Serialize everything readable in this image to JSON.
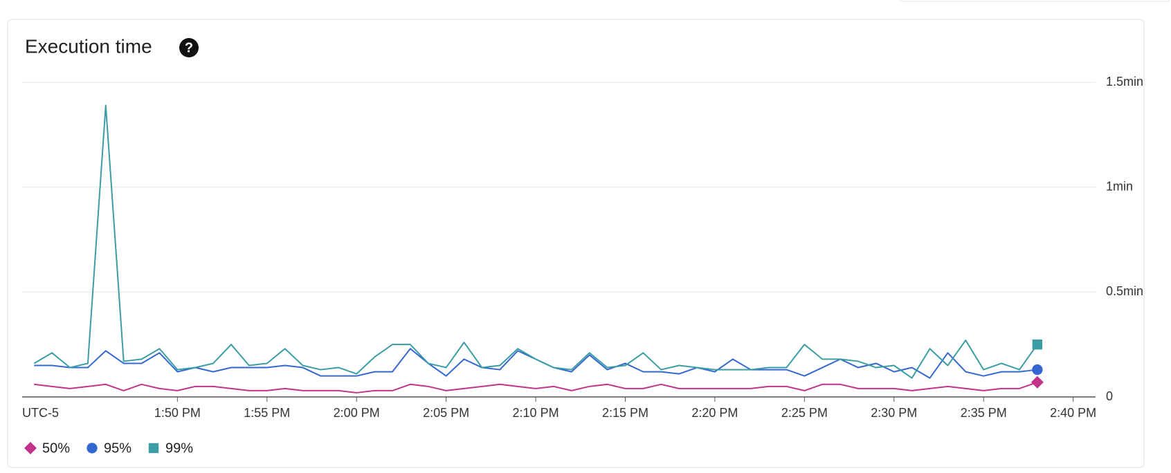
{
  "chart_data": {
    "type": "line",
    "title": "Execution time",
    "help_icon": "?",
    "x_label": "UTC-5",
    "x": [
      "13:42",
      "13:43",
      "13:44",
      "13:45",
      "13:46",
      "13:47",
      "13:48",
      "13:49",
      "13:50",
      "13:51",
      "13:52",
      "13:53",
      "13:54",
      "13:55",
      "13:56",
      "13:57",
      "13:58",
      "13:59",
      "14:00",
      "14:01",
      "14:02",
      "14:03",
      "14:04",
      "14:05",
      "14:06",
      "14:07",
      "14:08",
      "14:09",
      "14:10",
      "14:11",
      "14:12",
      "14:13",
      "14:14",
      "14:15",
      "14:16",
      "14:17",
      "14:18",
      "14:19",
      "14:20",
      "14:21",
      "14:22",
      "14:23",
      "14:24",
      "14:25",
      "14:26",
      "14:27",
      "14:28",
      "14:29",
      "14:30",
      "14:31",
      "14:32",
      "14:33",
      "14:34",
      "14:35",
      "14:36",
      "14:37",
      "14:38"
    ],
    "series": [
      {
        "name": "50%",
        "color": "#c2338a",
        "marker": "diamond",
        "values": [
          0.06,
          0.05,
          0.04,
          0.05,
          0.06,
          0.03,
          0.06,
          0.04,
          0.03,
          0.05,
          0.05,
          0.04,
          0.03,
          0.03,
          0.04,
          0.03,
          0.03,
          0.03,
          0.02,
          0.03,
          0.03,
          0.06,
          0.05,
          0.03,
          0.04,
          0.05,
          0.06,
          0.05,
          0.04,
          0.05,
          0.03,
          0.05,
          0.06,
          0.04,
          0.04,
          0.06,
          0.04,
          0.04,
          0.04,
          0.04,
          0.04,
          0.05,
          0.05,
          0.03,
          0.06,
          0.06,
          0.04,
          0.04,
          0.04,
          0.03,
          0.04,
          0.05,
          0.04,
          0.03,
          0.04,
          0.04,
          0.07
        ]
      },
      {
        "name": "95%",
        "color": "#3467d0",
        "marker": "circle",
        "values": [
          0.15,
          0.15,
          0.14,
          0.14,
          0.22,
          0.16,
          0.16,
          0.21,
          0.12,
          0.14,
          0.12,
          0.14,
          0.14,
          0.14,
          0.15,
          0.14,
          0.1,
          0.1,
          0.1,
          0.12,
          0.12,
          0.23,
          0.16,
          0.1,
          0.18,
          0.14,
          0.13,
          0.22,
          0.18,
          0.14,
          0.12,
          0.2,
          0.13,
          0.16,
          0.12,
          0.12,
          0.11,
          0.14,
          0.12,
          0.18,
          0.13,
          0.13,
          0.13,
          0.1,
          0.14,
          0.18,
          0.14,
          0.16,
          0.12,
          0.14,
          0.09,
          0.21,
          0.12,
          0.1,
          0.12,
          0.12,
          0.13
        ]
      },
      {
        "name": "99%",
        "color": "#3a9da5",
        "marker": "square",
        "values": [
          0.16,
          0.21,
          0.14,
          0.16,
          1.39,
          0.17,
          0.18,
          0.23,
          0.13,
          0.14,
          0.16,
          0.25,
          0.15,
          0.16,
          0.23,
          0.15,
          0.13,
          0.14,
          0.11,
          0.19,
          0.25,
          0.25,
          0.16,
          0.14,
          0.26,
          0.14,
          0.15,
          0.23,
          0.18,
          0.14,
          0.13,
          0.21,
          0.14,
          0.15,
          0.21,
          0.13,
          0.15,
          0.14,
          0.13,
          0.13,
          0.13,
          0.14,
          0.14,
          0.25,
          0.18,
          0.18,
          0.17,
          0.14,
          0.15,
          0.09,
          0.23,
          0.15,
          0.27,
          0.13,
          0.16,
          0.13,
          0.25
        ]
      }
    ],
    "xlim": [
      "13:41:20",
      "14:41:15"
    ],
    "xticks": [
      {
        "value": "13:50",
        "label": "1:50 PM"
      },
      {
        "value": "13:55",
        "label": "1:55 PM"
      },
      {
        "value": "14:00",
        "label": "2:00 PM"
      },
      {
        "value": "14:05",
        "label": "2:05 PM"
      },
      {
        "value": "14:10",
        "label": "2:10 PM"
      },
      {
        "value": "14:15",
        "label": "2:15 PM"
      },
      {
        "value": "14:20",
        "label": "2:20 PM"
      },
      {
        "value": "14:25",
        "label": "2:25 PM"
      },
      {
        "value": "14:30",
        "label": "2:30 PM"
      },
      {
        "value": "14:35",
        "label": "2:35 PM"
      },
      {
        "value": "14:40",
        "label": "2:40 PM"
      }
    ],
    "ylim": [
      0,
      1.5
    ],
    "yticks": [
      0,
      {
        "value": 0.5,
        "label": "0.5min"
      },
      {
        "value": 1,
        "label": "1min"
      },
      {
        "value": 1.5,
        "label": "1.5min"
      }
    ],
    "grid": true
  }
}
